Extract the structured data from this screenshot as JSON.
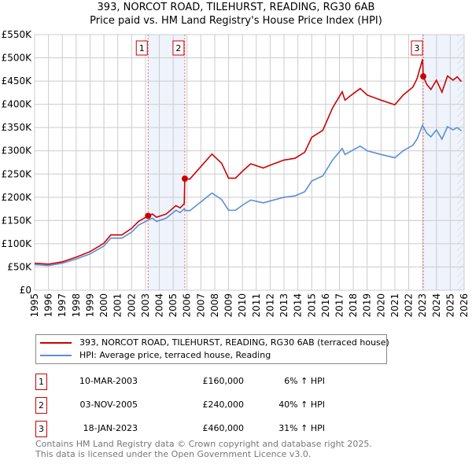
{
  "chart_data": {
    "type": "line",
    "title": "393, NORCOT ROAD, TILEHURST, READING, RG30 6AB",
    "subtitle": "Price paid vs. HM Land Registry's House Price Index (HPI)",
    "xlabel": "",
    "ylabel": "",
    "xlim": [
      1995,
      2026
    ],
    "ylim": [
      0,
      550000
    ],
    "yticks": [
      0,
      50000,
      100000,
      150000,
      200000,
      250000,
      300000,
      350000,
      400000,
      450000,
      500000,
      550000
    ],
    "ytick_labels": [
      "£0",
      "£50K",
      "£100K",
      "£150K",
      "£200K",
      "£250K",
      "£300K",
      "£350K",
      "£400K",
      "£450K",
      "£500K",
      "£550K"
    ],
    "xticks": [
      "1995",
      "1996",
      "1997",
      "1998",
      "1999",
      "2000",
      "2001",
      "2002",
      "2003",
      "2004",
      "2005",
      "2006",
      "2007",
      "2008",
      "2009",
      "2010",
      "2011",
      "2012",
      "2013",
      "2014",
      "2015",
      "2016",
      "2017",
      "2018",
      "2019",
      "2020",
      "2021",
      "2022",
      "2023",
      "2024",
      "2025",
      "2026"
    ],
    "grid": true,
    "series": [
      {
        "name": "393, NORCOT ROAD, TILEHURST, READING, RG30 6AB (terraced house)",
        "color": "#cc0000",
        "x": [
          1995,
          1996,
          1997,
          1998,
          1999,
          2000,
          2000.5,
          2001.3,
          2002,
          2002.5,
          2003.2,
          2003.5,
          2003.8,
          2004.5,
          2005.2,
          2005.5,
          2005.8,
          2005.84,
          2006.2,
          2007,
          2007.8,
          2008.5,
          2009,
          2009.5,
          2010,
          2010.6,
          2011.5,
          2012,
          2013,
          2013.8,
          2014.5,
          2015,
          2015.8,
          2016.5,
          2017.2,
          2017.4,
          2018,
          2018.5,
          2019,
          2020,
          2021,
          2021.6,
          2022.3,
          2022.6,
          2023.0,
          2023.05,
          2023.3,
          2023.6,
          2024,
          2024.4,
          2024.8,
          2025.2,
          2025.5,
          2025.8
        ],
        "y": [
          58000,
          56000,
          61000,
          71000,
          83000,
          101000,
          119000,
          119000,
          133000,
          148000,
          160000,
          164000,
          157000,
          164000,
          182000,
          177000,
          186000,
          240000,
          239000,
          266000,
          293000,
          273000,
          241000,
          241000,
          256000,
          272000,
          263000,
          269000,
          280000,
          284000,
          297000,
          329000,
          344000,
          392000,
          427000,
          409000,
          423000,
          434000,
          420000,
          409000,
          399000,
          420000,
          437000,
          455000,
          497000,
          460000,
          443000,
          432000,
          452000,
          426000,
          461000,
          452000,
          459000,
          449000
        ]
      },
      {
        "name": "HPI: Average price, terraced house, Reading",
        "color": "#5b8fd4",
        "x": [
          1995,
          1996,
          1997,
          1998,
          1999,
          2000,
          2000.5,
          2001.3,
          2002,
          2002.5,
          2003.2,
          2003.5,
          2003.8,
          2004.5,
          2005.2,
          2005.5,
          2005.8,
          2005.84,
          2006.2,
          2007,
          2007.8,
          2008.5,
          2009,
          2009.5,
          2010,
          2010.6,
          2011.5,
          2012,
          2013,
          2013.8,
          2014.5,
          2015,
          2015.8,
          2016.5,
          2017.2,
          2017.4,
          2018,
          2018.5,
          2019,
          2020,
          2021,
          2021.6,
          2022.3,
          2022.6,
          2023.0,
          2023.05,
          2023.3,
          2023.6,
          2024,
          2024.4,
          2024.8,
          2025.2,
          2025.5,
          2025.8
        ],
        "y": [
          55000,
          53000,
          58000,
          67000,
          78000,
          95000,
          112000,
          112000,
          125000,
          140000,
          151000,
          155000,
          148000,
          155000,
          172000,
          167000,
          175000,
          172000,
          171000,
          190000,
          209000,
          195000,
          172000,
          172000,
          183000,
          194000,
          188000,
          192000,
          200000,
          203000,
          212000,
          235000,
          246000,
          280000,
          305000,
          292000,
          302000,
          310000,
          300000,
          292000,
          285000,
          300000,
          312000,
          325000,
          355000,
          352000,
          338000,
          330000,
          345000,
          325000,
          352000,
          345000,
          350000,
          343000
        ]
      }
    ],
    "sales": [
      {
        "n": "1",
        "date": "10-MAR-2003",
        "x": 2003.19,
        "price": 160000,
        "price_label": "£160,000",
        "hpi": "6% ↑ HPI"
      },
      {
        "n": "2",
        "date": "03-NOV-2005",
        "x": 2005.84,
        "price": 240000,
        "price_label": "£240,000",
        "hpi": "40% ↑ HPI"
      },
      {
        "n": "3",
        "date": "18-JAN-2023",
        "x": 2023.05,
        "price": 460000,
        "price_label": "£460,000",
        "hpi": "31% ↑ HPI"
      }
    ],
    "hatch_from": 2025.5
  },
  "legend": {
    "red": "393, NORCOT ROAD, TILEHURST, READING, RG30 6AB (terraced house)",
    "blue": "HPI: Average price, terraced house, Reading"
  },
  "footer": {
    "line1": "Contains HM Land Registry data © Crown copyright and database right 2025.",
    "line2": "This data is licensed under the Open Government Licence v3.0."
  }
}
